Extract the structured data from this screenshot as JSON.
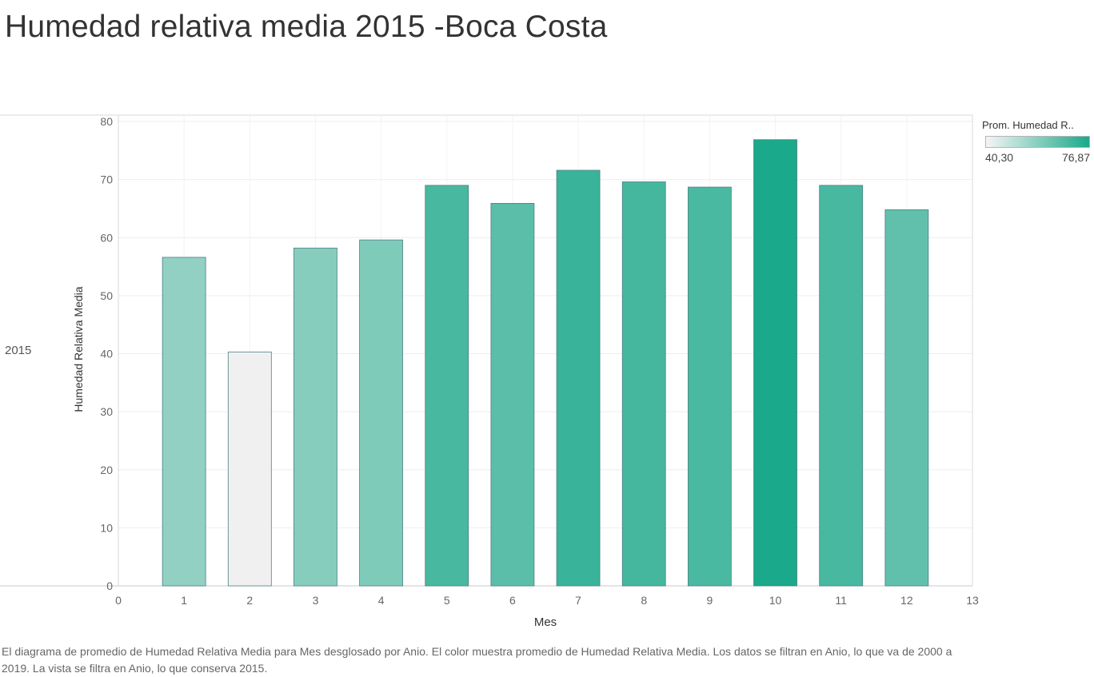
{
  "title": "Humedad relativa media 2015 -Boca Costa",
  "row_label": "2015",
  "legend": {
    "title": "Prom. Humedad R..",
    "min_label": "40,30",
    "max_label": "76,87",
    "min_value": 40.3,
    "max_value": 76.87,
    "color_low": "#f0f0f0",
    "color_high": "#1aa98a"
  },
  "caption": "El diagrama de promedio de Humedad Relativa Media para Mes desglosado por Anio.  El color muestra promedio de Humedad Relativa Media. Los datos se filtran en Anio, lo que va de 2000 a 2019. La vista se filtra en Anio, lo que conserva 2015.",
  "chart_data": {
    "type": "bar",
    "title": "Humedad relativa media 2015 -Boca Costa",
    "xlabel": "Mes",
    "ylabel": "Humedad Relativa Media",
    "x": [
      1,
      2,
      3,
      4,
      5,
      6,
      7,
      8,
      9,
      10,
      11,
      12
    ],
    "values": [
      56.6,
      40.3,
      58.2,
      59.6,
      69.0,
      65.9,
      71.6,
      69.6,
      68.7,
      76.87,
      69.0,
      64.8
    ],
    "xlim": [
      0,
      13
    ],
    "ylim": [
      0,
      80
    ],
    "xticks": [
      0,
      1,
      2,
      3,
      4,
      5,
      6,
      7,
      8,
      9,
      10,
      11,
      12,
      13
    ],
    "yticks": [
      0,
      10,
      20,
      30,
      40,
      50,
      60,
      70,
      80
    ],
    "grid": true,
    "legend_position": "top-right"
  }
}
